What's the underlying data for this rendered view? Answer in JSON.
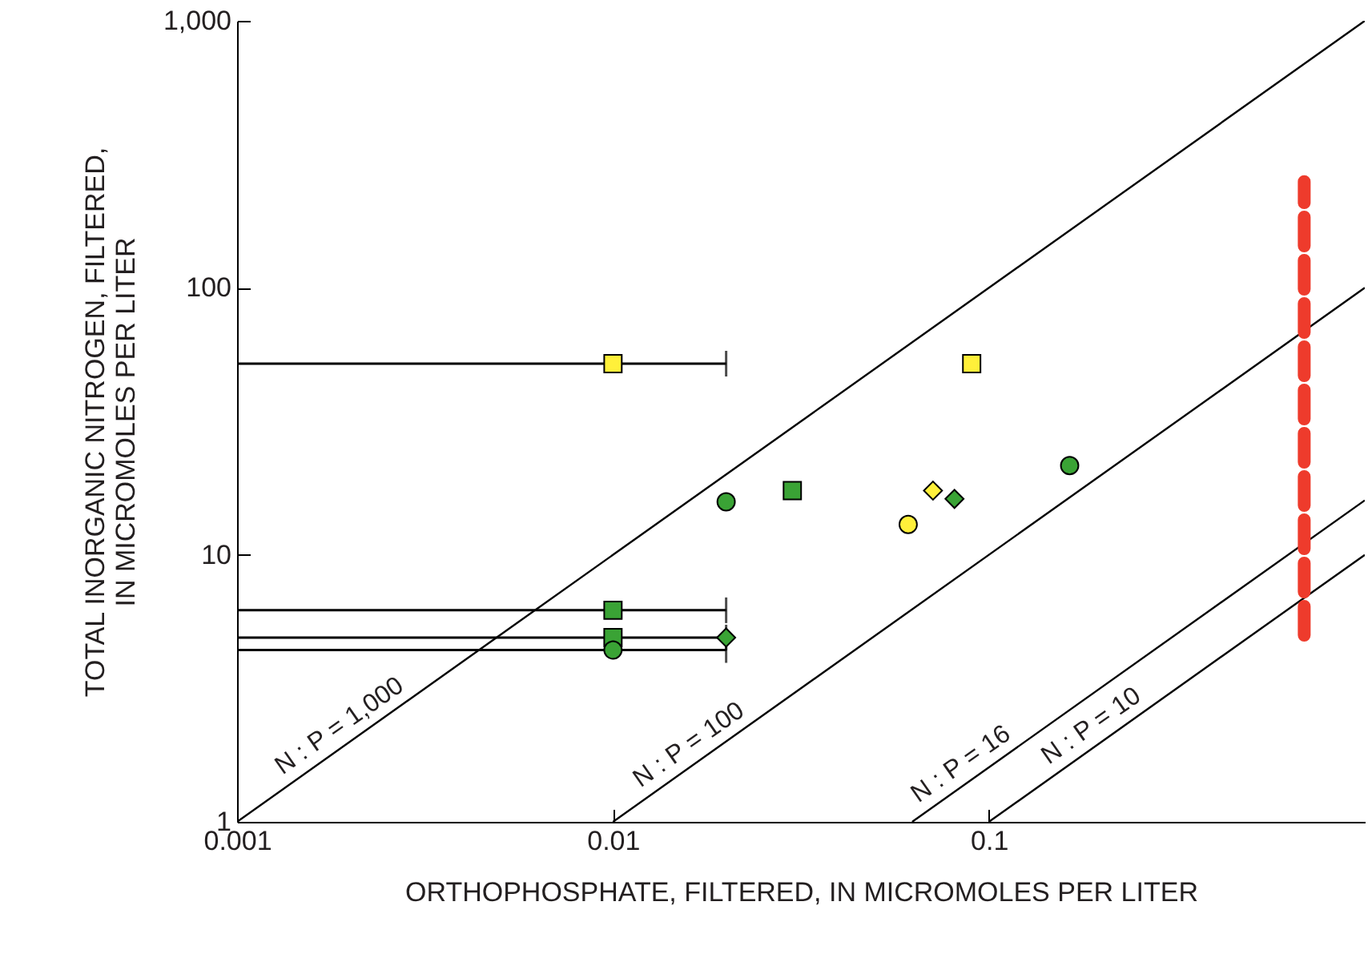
{
  "chart_data": {
    "type": "scatter",
    "xlabel": "ORTHOPHOSPHATE, FILTERED, IN MICROMOLES PER LITER",
    "ylabel": "TOTAL INORGANIC NITROGEN, FILTERED, IN MICROMOLES PER LITER",
    "log": "xy",
    "grid": false,
    "xlim": [
      0.001,
      1
    ],
    "xticks": [
      0.001,
      0.01,
      0.1
    ],
    "ylim": [
      1,
      1000
    ],
    "yticks": [
      1,
      10,
      100,
      {
        "value": 1000,
        "label": "1,000"
      }
    ],
    "series": [
      {
        "type": "line",
        "color": "#000000",
        "x": [
          0.001,
          1
        ],
        "values": [
          1,
          1000
        ]
      },
      {
        "type": "line",
        "color": "#000000",
        "x": [
          0.01,
          1
        ],
        "values": [
          1,
          100
        ]
      },
      {
        "type": "line",
        "color": "#000000",
        "x": [
          0.0625,
          1
        ],
        "values": [
          1,
          16
        ]
      },
      {
        "type": "line",
        "color": "#000000",
        "x": [
          0.1,
          1
        ],
        "values": [
          1,
          10
        ]
      },
      {
        "type": "line",
        "color": "#ee3b2c",
        "line_style": "dashed",
        "x": [
          0.69,
          0.69
        ],
        "values": [
          5,
          250
        ]
      },
      {
        "marker": "square",
        "color": "#fff03a",
        "x": [
          0.01,
          0.09
        ],
        "values": [
          52,
          52
        ],
        "xerrors": [
          [
            0.001,
            0.02
          ],
          null
        ]
      },
      {
        "marker": "square",
        "color": "#3aa335",
        "x": [
          0.01,
          0.01,
          0.03
        ],
        "values": [
          6.2,
          4.9,
          17.4
        ],
        "xerrors": [
          [
            0.001,
            0.02
          ],
          [
            0.001,
            0.02
          ],
          null
        ]
      },
      {
        "marker": "circle",
        "color": "#3aa335",
        "x": [
          0.01,
          0.02,
          0.164
        ],
        "values": [
          4.4,
          15.8,
          21.6
        ],
        "xerrors": [
          [
            0.001,
            0.02
          ],
          null,
          null
        ]
      },
      {
        "marker": "diamond",
        "color": "#3aa335",
        "x": [
          0.02,
          0.081
        ],
        "values": [
          4.9,
          16.2
        ]
      },
      {
        "marker": "circle",
        "color": "#fff03a",
        "x": [
          0.061
        ],
        "values": [
          13
        ]
      },
      {
        "marker": "diamond",
        "color": "#fff03a",
        "x": [
          0.071
        ],
        "values": [
          17.4
        ]
      }
    ],
    "annotations": [
      {
        "text": "N : P = 1,000",
        "x": 0.002,
        "y": 2
      },
      {
        "text": "N : P = 100",
        "x": 0.017,
        "y": 1.7
      },
      {
        "text": "N : P = 16",
        "x": 0.09,
        "y": 1.44
      },
      {
        "text": "N : P = 10",
        "x": 0.2,
        "y": 2
      }
    ]
  }
}
